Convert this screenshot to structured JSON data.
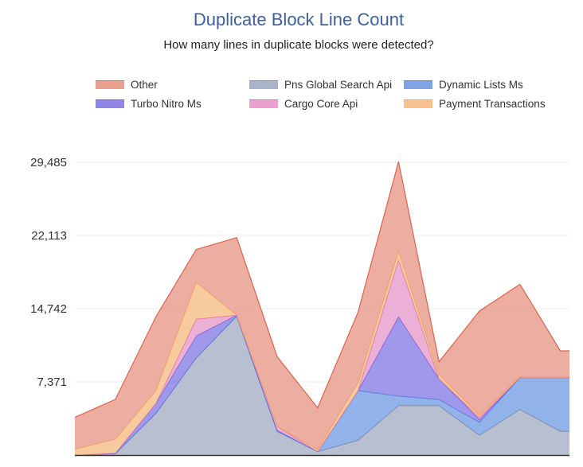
{
  "title": "Duplicate Block Line Count",
  "subtitle": "How many lines in duplicate blocks were detected?",
  "chart_data": {
    "type": "area",
    "stacked": true,
    "title": "Duplicate Block Line Count",
    "subtitle": "How many lines in duplicate blocks were detected?",
    "x": [
      0,
      1,
      2,
      3,
      4,
      5,
      6,
      7,
      8,
      9,
      10,
      11,
      12,
      13
    ],
    "ylim": [
      0,
      29485
    ],
    "yticks": [
      "7,371",
      "14,742",
      "22,113",
      "29,485"
    ],
    "ytick_values": [
      7371,
      14742,
      22113,
      29485
    ],
    "grid": true,
    "legend_position": "top",
    "series": [
      {
        "name": "Pns Global Search Api",
        "color": "#aab4c8",
        "values": [
          0,
          150,
          4200,
          9800,
          14000,
          2400,
          350,
          1500,
          5000,
          5000,
          2000,
          4600,
          2400,
          null
        ]
      },
      {
        "name": "Dynamic Lists Ms",
        "color": "#7fa4e6",
        "values": [
          0,
          0,
          0,
          0,
          0,
          0,
          0,
          5000,
          950,
          600,
          1300,
          3200,
          5400,
          null
        ]
      },
      {
        "name": "Turbo Nitro Ms",
        "color": "#8f86e8",
        "values": [
          0,
          50,
          1000,
          2200,
          100,
          100,
          0,
          0,
          8000,
          2100,
          300,
          0,
          0,
          null
        ]
      },
      {
        "name": "Cargo Core Api",
        "color": "#e9a2cf",
        "values": [
          0,
          0,
          0,
          1700,
          0,
          400,
          0,
          0,
          5700,
          0,
          200,
          0,
          0,
          null
        ]
      },
      {
        "name": "Payment Transactions",
        "color": "#f7c28e",
        "values": [
          600,
          1400,
          1300,
          3700,
          0,
          0,
          200,
          800,
          900,
          400,
          200,
          100,
          100,
          null
        ]
      },
      {
        "name": "Other",
        "color": "#e9a091",
        "values": [
          3200,
          4000,
          7400,
          3300,
          7800,
          7000,
          4200,
          7100,
          9000,
          1300,
          10500,
          9300,
          2600,
          null
        ]
      }
    ],
    "legend_order": [
      "Other",
      "Pns Global Search Api",
      "Dynamic Lists Ms",
      "Turbo Nitro Ms",
      "Cargo Core Api",
      "Payment Transactions"
    ],
    "colors": {
      "Other": "#e9a091",
      "Pns Global Search Api": "#aab4c8",
      "Dynamic Lists Ms": "#7fa4e6",
      "Turbo Nitro Ms": "#8f86e8",
      "Cargo Core Api": "#e9a2cf",
      "Payment Transactions": "#f7c28e"
    },
    "line_colors": {
      "Other": "#e0604c",
      "Pns Global Search Api": "#7c879c",
      "Dynamic Lists Ms": "#4f7fd9",
      "Turbo Nitro Ms": "#6a5ce0",
      "Cargo Core Api": "#d96cb4",
      "Payment Transactions": "#f2a55c"
    }
  }
}
